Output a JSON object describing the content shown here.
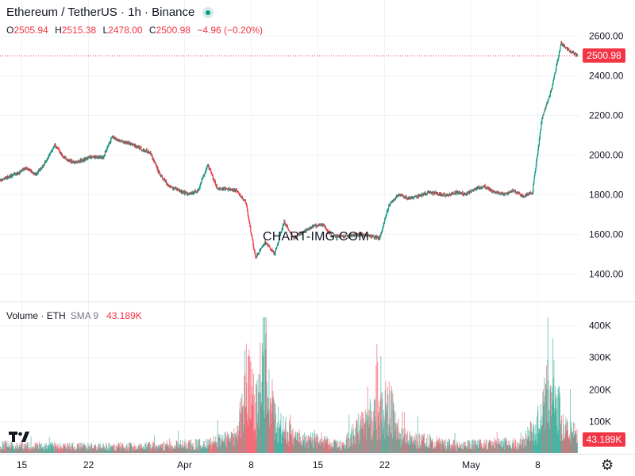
{
  "header": {
    "title": "Ethereum / TetherUS · 1h · Binance",
    "ohlc": {
      "o_label": "O",
      "o": "2505.94",
      "h_label": "H",
      "h": "2515.38",
      "l_label": "L",
      "l": "2478.00",
      "c_label": "C",
      "c": "2500.98",
      "change": "−4.96 (−0.20%)"
    }
  },
  "volume_legend": {
    "label": "Volume · ETH",
    "sma": "SMA 9",
    "value": "43.189K"
  },
  "price_badge": "2500.98",
  "volume_badge": "43.189K",
  "watermark": "CHART-IMG.COM",
  "colors": {
    "up": "#089981",
    "down": "#f23645",
    "grid": "#f0f3fa",
    "text": "#131722"
  },
  "icons": {
    "logo": "tradingview-logo-icon",
    "settings": "gear-icon",
    "status": "live-status-dot"
  },
  "chart_data": [
    {
      "type": "candlestick",
      "title": "Ethereum / TetherUS · 1h · Binance",
      "interval": "1h",
      "x_ticks": [
        "15",
        "22",
        "Apr",
        "8",
        "15",
        "22",
        "May",
        "8"
      ],
      "y_ticks": [
        "1400.00",
        "1600.00",
        "1800.00",
        "2000.00",
        "2200.00",
        "2400.00",
        "2600.00"
      ],
      "ylim": [
        1320,
        2660
      ],
      "last_price": 2500.98,
      "grid": true,
      "approx_close_path": [
        {
          "t": "Mar 13",
          "close": 1870
        },
        {
          "t": "Mar 14",
          "close": 1905
        },
        {
          "t": "Mar 15",
          "close": 1935
        },
        {
          "t": "Mar 16",
          "close": 1900
        },
        {
          "t": "Mar 17",
          "close": 1960
        },
        {
          "t": "Mar 18",
          "close": 2050
        },
        {
          "t": "Mar 19",
          "close": 1980
        },
        {
          "t": "Mar 20",
          "close": 1960
        },
        {
          "t": "Mar 22",
          "close": 1990
        },
        {
          "t": "Mar 23",
          "close": 1985
        },
        {
          "t": "Mar 24",
          "close": 2090
        },
        {
          "t": "Mar 25",
          "close": 2065
        },
        {
          "t": "Mar 26",
          "close": 2055
        },
        {
          "t": "Mar 27",
          "close": 2030
        },
        {
          "t": "Mar 28",
          "close": 2010
        },
        {
          "t": "Mar 29",
          "close": 1900
        },
        {
          "t": "Mar 30",
          "close": 1840
        },
        {
          "t": "Apr 1",
          "close": 1800
        },
        {
          "t": "Apr 2",
          "close": 1820
        },
        {
          "t": "Apr 3",
          "close": 1950
        },
        {
          "t": "Apr 4",
          "close": 1830
        },
        {
          "t": "Apr 5",
          "close": 1825
        },
        {
          "t": "Apr 6",
          "close": 1820
        },
        {
          "t": "Apr 7",
          "close": 1760
        },
        {
          "t": "Apr 8",
          "close": 1480
        },
        {
          "t": "Apr 9",
          "close": 1560
        },
        {
          "t": "Apr 10",
          "close": 1500
        },
        {
          "t": "Apr 11",
          "close": 1660
        },
        {
          "t": "Apr 12",
          "close": 1580
        },
        {
          "t": "Apr 13",
          "close": 1610
        },
        {
          "t": "Apr 14",
          "close": 1640
        },
        {
          "t": "Apr 15",
          "close": 1650
        },
        {
          "t": "Apr 16",
          "close": 1590
        },
        {
          "t": "Apr 17",
          "close": 1590
        },
        {
          "t": "Apr 18",
          "close": 1590
        },
        {
          "t": "Apr 19",
          "close": 1600
        },
        {
          "t": "Apr 20",
          "close": 1590
        },
        {
          "t": "Apr 21",
          "close": 1580
        },
        {
          "t": "Apr 22",
          "close": 1750
        },
        {
          "t": "Apr 23",
          "close": 1800
        },
        {
          "t": "Apr 24",
          "close": 1780
        },
        {
          "t": "Apr 25",
          "close": 1790
        },
        {
          "t": "Apr 26",
          "close": 1810
        },
        {
          "t": "Apr 27",
          "close": 1805
        },
        {
          "t": "Apr 28",
          "close": 1795
        },
        {
          "t": "Apr 29",
          "close": 1810
        },
        {
          "t": "Apr 30",
          "close": 1800
        },
        {
          "t": "May 1",
          "close": 1830
        },
        {
          "t": "May 2",
          "close": 1840
        },
        {
          "t": "May 3",
          "close": 1810
        },
        {
          "t": "May 4",
          "close": 1800
        },
        {
          "t": "May 5",
          "close": 1820
        },
        {
          "t": "May 6",
          "close": 1790
        },
        {
          "t": "May 7",
          "close": 1810
        },
        {
          "t": "May 8",
          "close": 2180
        },
        {
          "t": "May 9",
          "close": 2330
        },
        {
          "t": "May 10",
          "close": 2560
        },
        {
          "t": "May 11",
          "close": 2520
        },
        {
          "t": "May 12",
          "close": 2500.98
        }
      ]
    },
    {
      "type": "bar",
      "title": "Volume · ETH",
      "y_ticks": [
        "100K",
        "200K",
        "300K",
        "400K"
      ],
      "ylim": [
        0,
        430000
      ],
      "last_value": "43.189K",
      "approx_volume_path": [
        {
          "t": "Mar 13",
          "v": 30000
        },
        {
          "t": "Mar 20",
          "v": 25000
        },
        {
          "t": "Mar 27",
          "v": 25000
        },
        {
          "t": "Apr 3",
          "v": 35000
        },
        {
          "t": "Apr 6",
          "v": 60000
        },
        {
          "t": "Apr 7",
          "v": 300000
        },
        {
          "t": "Apr 8",
          "v": 160000
        },
        {
          "t": "Apr 9",
          "v": 420000
        },
        {
          "t": "Apr 10",
          "v": 120000
        },
        {
          "t": "Apr 12",
          "v": 60000
        },
        {
          "t": "Apr 17",
          "v": 30000
        },
        {
          "t": "Apr 22",
          "v": 190000
        },
        {
          "t": "Apr 23",
          "v": 60000
        },
        {
          "t": "Apr 29",
          "v": 30000
        },
        {
          "t": "May 6",
          "v": 40000
        },
        {
          "t": "May 8",
          "v": 130000
        },
        {
          "t": "May 9",
          "v": 310000
        },
        {
          "t": "May 10",
          "v": 120000
        },
        {
          "t": "May 12",
          "v": 60000
        }
      ]
    }
  ]
}
